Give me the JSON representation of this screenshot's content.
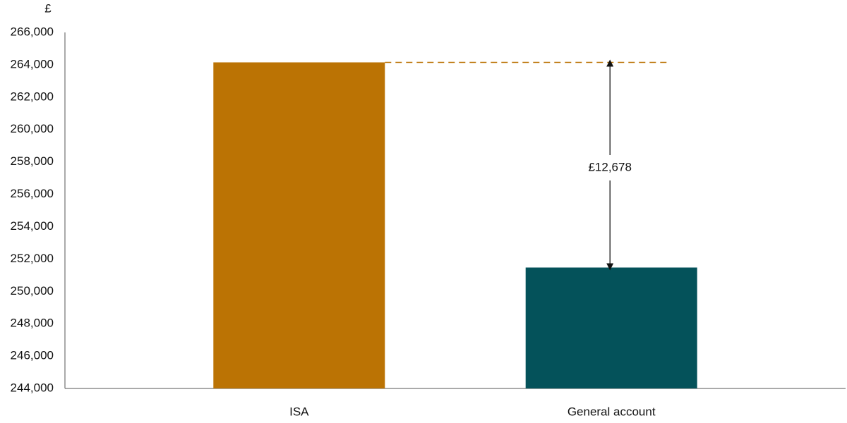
{
  "chart_data": {
    "type": "bar",
    "y_label": "£",
    "categories": [
      "ISA",
      "General account"
    ],
    "values": [
      264150,
      251472
    ],
    "colors": [
      "#bb7304",
      "#04525a"
    ],
    "annotation": "£12,678",
    "ylim": [
      244000,
      266000
    ],
    "yticks": [
      {
        "value": 244000,
        "label": "244,000"
      },
      {
        "value": 246000,
        "label": "246,000"
      },
      {
        "value": 248000,
        "label": "248,000"
      },
      {
        "value": 250000,
        "label": "250,000"
      },
      {
        "value": 252000,
        "label": "252,000"
      },
      {
        "value": 254000,
        "label": "254,000"
      },
      {
        "value": 256000,
        "label": "256,000"
      },
      {
        "value": 258000,
        "label": "258,000"
      },
      {
        "value": 260000,
        "label": "260,000"
      },
      {
        "value": 262000,
        "label": "262,000"
      },
      {
        "value": 264000,
        "label": "264,000"
      },
      {
        "value": 266000,
        "label": "266,000"
      }
    ],
    "grid": false
  }
}
